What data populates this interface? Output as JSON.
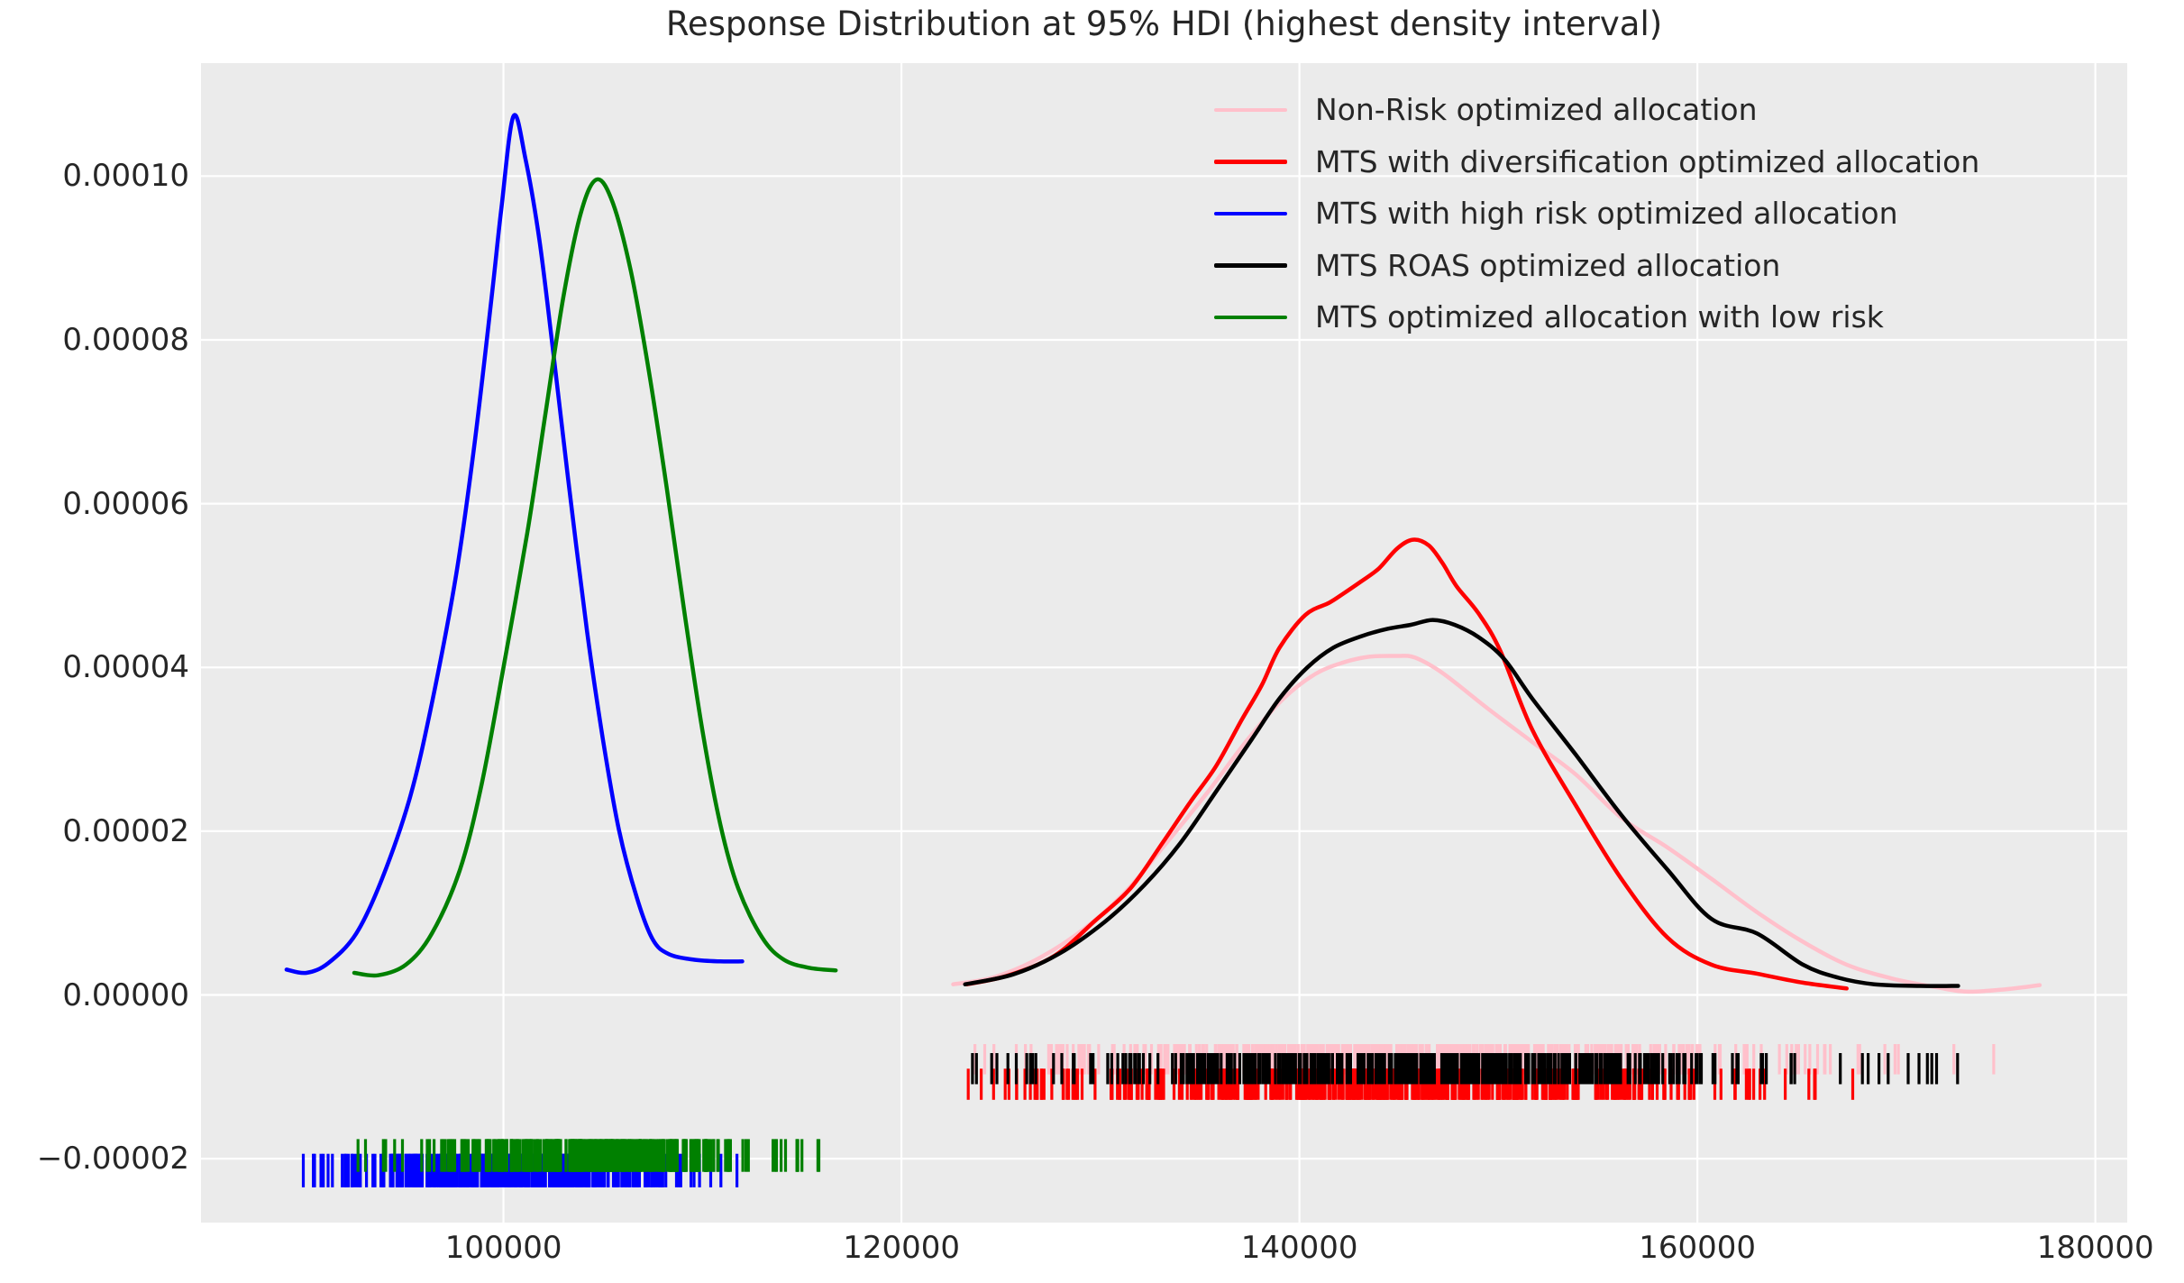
{
  "colors": {
    "axes_bg": "#ebebeb",
    "grid": "#ffffff",
    "text": "#262626",
    "fig_bg": "#ffffff"
  },
  "chart_data": {
    "type": "line",
    "subtype": "kde-density-with-rug",
    "title": "Response Distribution at 95% HDI (highest density interval)",
    "xlabel": "",
    "ylabel": "",
    "grid": true,
    "legend_position": "upper right",
    "xlim": [
      84800,
      181600
    ],
    "ylim": [
      -2.78e-05,
      0.0001138
    ],
    "x_ticks": {
      "values": [
        100000,
        120000,
        140000,
        160000,
        180000
      ],
      "labels": [
        "100000",
        "120000",
        "140000",
        "160000",
        "180000"
      ]
    },
    "y_ticks": {
      "values": [
        0.0001,
        8e-05,
        6e-05,
        4e-05,
        2e-05,
        0.0,
        -2e-05
      ],
      "labels": [
        "0.00010",
        "0.00008",
        "0.00006",
        "0.00004",
        "0.00002",
        "0.00000",
        "−0.00002"
      ]
    },
    "series": [
      {
        "name": "Non-Risk optimized allocation",
        "color": "#ffc0cb",
        "peak": {
          "x": 144900,
          "y": 4.14e-05
        },
        "points": [
          [
            122600,
            1.3e-06
          ],
          [
            124700,
            2.2e-06
          ],
          [
            127000,
            4.6e-06
          ],
          [
            129300,
            8.3e-06
          ],
          [
            131300,
            1.27e-05
          ],
          [
            133300,
            1.85e-05
          ],
          [
            135400,
            2.48e-05
          ],
          [
            137400,
            3.12e-05
          ],
          [
            139200,
            3.62e-05
          ],
          [
            140800,
            3.92e-05
          ],
          [
            142200,
            4.06e-05
          ],
          [
            143500,
            4.13e-05
          ],
          [
            144900,
            4.14e-05
          ],
          [
            145800,
            4.12e-05
          ],
          [
            147200,
            3.93e-05
          ],
          [
            149400,
            3.51e-05
          ],
          [
            151700,
            3.09e-05
          ],
          [
            153900,
            2.69e-05
          ],
          [
            156200,
            2.16e-05
          ],
          [
            158500,
            1.8e-05
          ],
          [
            160700,
            1.42e-05
          ],
          [
            163000,
            1.01e-05
          ],
          [
            165300,
            6.5e-06
          ],
          [
            167500,
            3.7e-06
          ],
          [
            169800,
            2e-06
          ],
          [
            172100,
            9e-07
          ],
          [
            173600,
            4e-07
          ],
          [
            175500,
            7e-07
          ],
          [
            177200,
            1.2e-06
          ]
        ]
      },
      {
        "name": "MTS with diversification optimized allocation",
        "color": "#ff0000",
        "peak": {
          "x": 145700,
          "y": 5.56e-05
        },
        "points": [
          [
            123300,
            1.3e-06
          ],
          [
            125400,
            2.4e-06
          ],
          [
            127700,
            4.8e-06
          ],
          [
            129700,
            9e-06
          ],
          [
            131500,
            1.3e-05
          ],
          [
            133100,
            1.85e-05
          ],
          [
            134500,
            2.35e-05
          ],
          [
            135800,
            2.79e-05
          ],
          [
            137100,
            3.36e-05
          ],
          [
            138100,
            3.78e-05
          ],
          [
            139000,
            4.24e-05
          ],
          [
            140300,
            4.64e-05
          ],
          [
            141500,
            4.79e-05
          ],
          [
            142200,
            4.9e-05
          ],
          [
            143100,
            5.05e-05
          ],
          [
            144000,
            5.21e-05
          ],
          [
            144900,
            5.45e-05
          ],
          [
            145700,
            5.56e-05
          ],
          [
            146500,
            5.49e-05
          ],
          [
            147200,
            5.27e-05
          ],
          [
            147900,
            4.99e-05
          ],
          [
            149000,
            4.66e-05
          ],
          [
            150100,
            4.2e-05
          ],
          [
            151700,
            3.24e-05
          ],
          [
            153900,
            2.31e-05
          ],
          [
            156200,
            1.41e-05
          ],
          [
            158500,
            7e-06
          ],
          [
            160700,
            3.7e-06
          ],
          [
            163000,
            2.6e-06
          ],
          [
            165300,
            1.5e-06
          ],
          [
            167500,
            8e-07
          ]
        ]
      },
      {
        "name": "MTS with high risk optimized allocation",
        "color": "#0000ff",
        "peak": {
          "x": 100500,
          "y": 0.0001073
        },
        "points": [
          [
            89100,
            3.1e-06
          ],
          [
            90100,
            2.7e-06
          ],
          [
            91200,
            3.9e-06
          ],
          [
            92600,
            7.5e-06
          ],
          [
            93900,
            1.42e-05
          ],
          [
            95300,
            2.41e-05
          ],
          [
            96400,
            3.56e-05
          ],
          [
            97600,
            5.1e-05
          ],
          [
            98500,
            6.64e-05
          ],
          [
            99400,
            8.51e-05
          ],
          [
            99900,
            9.62e-05
          ],
          [
            100500,
            0.0001073
          ],
          [
            101100,
            0.0001022
          ],
          [
            101800,
            9.23e-05
          ],
          [
            102500,
            7.85e-05
          ],
          [
            103300,
            6.2e-05
          ],
          [
            104200,
            4.44e-05
          ],
          [
            105000,
            3.12e-05
          ],
          [
            105800,
            2.02e-05
          ],
          [
            106700,
            1.19e-05
          ],
          [
            107500,
            6.8e-06
          ],
          [
            108300,
            5e-06
          ],
          [
            109600,
            4.3e-06
          ],
          [
            110900,
            4.1e-06
          ],
          [
            112000,
            4.1e-06
          ]
        ]
      },
      {
        "name": "MTS ROAS optimized allocation",
        "color": "#000000",
        "peak": {
          "x": 146700,
          "y": 4.58e-05
        },
        "points": [
          [
            123200,
            1.3e-06
          ],
          [
            125600,
            2.5e-06
          ],
          [
            127900,
            5e-06
          ],
          [
            130200,
            8.9e-06
          ],
          [
            132200,
            1.34e-05
          ],
          [
            134000,
            1.85e-05
          ],
          [
            135800,
            2.48e-05
          ],
          [
            137600,
            3.12e-05
          ],
          [
            139000,
            3.62e-05
          ],
          [
            140400,
            4e-05
          ],
          [
            141700,
            4.24e-05
          ],
          [
            143100,
            4.38e-05
          ],
          [
            144400,
            4.47e-05
          ],
          [
            145600,
            4.52e-05
          ],
          [
            146700,
            4.58e-05
          ],
          [
            147800,
            4.52e-05
          ],
          [
            149000,
            4.37e-05
          ],
          [
            150300,
            4.1e-05
          ],
          [
            151700,
            3.62e-05
          ],
          [
            153900,
            2.93e-05
          ],
          [
            156200,
            2.19e-05
          ],
          [
            158500,
            1.53e-05
          ],
          [
            160700,
            9.3e-06
          ],
          [
            163000,
            7.5e-06
          ],
          [
            165300,
            3.7e-06
          ],
          [
            167100,
            2.1e-06
          ],
          [
            168900,
            1.3e-06
          ],
          [
            171200,
            1.1e-06
          ],
          [
            173100,
            1.1e-06
          ]
        ]
      },
      {
        "name": "MTS optimized allocation with low risk",
        "color": "#008000",
        "peak": {
          "x": 104700,
          "y": 9.96e-05
        },
        "points": [
          [
            92500,
            2.7e-06
          ],
          [
            93700,
            2.4e-06
          ],
          [
            95100,
            3.7e-06
          ],
          [
            96400,
            7.5e-06
          ],
          [
            97800,
            1.52e-05
          ],
          [
            98900,
            2.57e-05
          ],
          [
            100000,
            4e-05
          ],
          [
            101200,
            5.65e-05
          ],
          [
            102100,
            7.08e-05
          ],
          [
            103000,
            8.51e-05
          ],
          [
            103900,
            9.56e-05
          ],
          [
            104700,
            9.96e-05
          ],
          [
            105500,
            9.67e-05
          ],
          [
            106400,
            8.84e-05
          ],
          [
            107300,
            7.63e-05
          ],
          [
            108200,
            6.2e-05
          ],
          [
            109100,
            4.66e-05
          ],
          [
            110000,
            3.23e-05
          ],
          [
            110900,
            2.08e-05
          ],
          [
            111800,
            1.3e-05
          ],
          [
            113000,
            7e-06
          ],
          [
            114100,
            4.3e-06
          ],
          [
            115400,
            3.3e-06
          ],
          [
            116700,
            3e-06
          ]
        ]
      }
    ],
    "rugs": [
      {
        "name": "Non-Risk optimized allocation",
        "color": "#ffc0cb",
        "count": 420,
        "x_min": 123000,
        "x_max": 177500,
        "x_center": 145000,
        "x_sigma": 8600,
        "y_top": -6e-06,
        "y_bottom": -9.7e-06,
        "seed": 11
      },
      {
        "name": "MTS with diversification optimized allocation",
        "color": "#ff0000",
        "count": 420,
        "x_min": 123300,
        "x_max": 167900,
        "x_center": 144600,
        "x_sigma": 7800,
        "y_top": -9e-06,
        "y_bottom": -1.28e-05,
        "seed": 12
      },
      {
        "name": "MTS with high risk optimized allocation",
        "color": "#0000ff",
        "count": 300,
        "x_min": 89100,
        "x_max": 112000,
        "x_center": 100300,
        "x_sigma": 4100,
        "y_top": -1.94e-05,
        "y_bottom": -2.35e-05,
        "seed": 13
      },
      {
        "name": "MTS ROAS optimized allocation",
        "color": "#000000",
        "count": 420,
        "x_min": 123300,
        "x_max": 173300,
        "x_center": 145800,
        "x_sigma": 8600,
        "y_top": -7.1e-06,
        "y_bottom": -1.09e-05,
        "seed": 14
      },
      {
        "name": "MTS optimized allocation with low risk",
        "color": "#008000",
        "count": 300,
        "x_min": 92500,
        "x_max": 116800,
        "x_center": 104500,
        "x_sigma": 4300,
        "y_top": -1.76e-05,
        "y_bottom": -2.16e-05,
        "seed": 15
      }
    ]
  }
}
